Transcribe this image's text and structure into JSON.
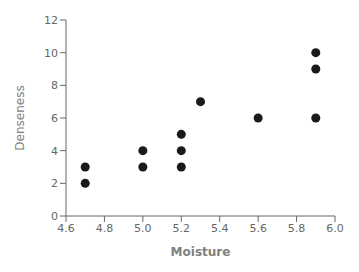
{
  "chart_data": {
    "type": "scatter",
    "x": [
      4.7,
      4.7,
      5.0,
      5.0,
      5.2,
      5.2,
      5.2,
      5.3,
      5.6,
      5.9,
      5.9,
      5.9
    ],
    "values": [
      3,
      2,
      4,
      3,
      5,
      4,
      3,
      7,
      6,
      10,
      9,
      6
    ],
    "xlabel": "Moisture",
    "ylabel": "Denseness",
    "xlim": [
      4.6,
      6.0
    ],
    "ylim": [
      0,
      12
    ],
    "xticks": [
      4.6,
      4.8,
      {
        "value": 5,
        "label": "5.0"
      },
      5.2,
      5.4,
      5.6,
      5.8,
      {
        "value": 6,
        "label": "6.0"
      }
    ],
    "yticks": [
      0,
      2,
      4,
      6,
      8,
      10,
      12
    ],
    "color": "#1a1a1a",
    "grid": false
  }
}
